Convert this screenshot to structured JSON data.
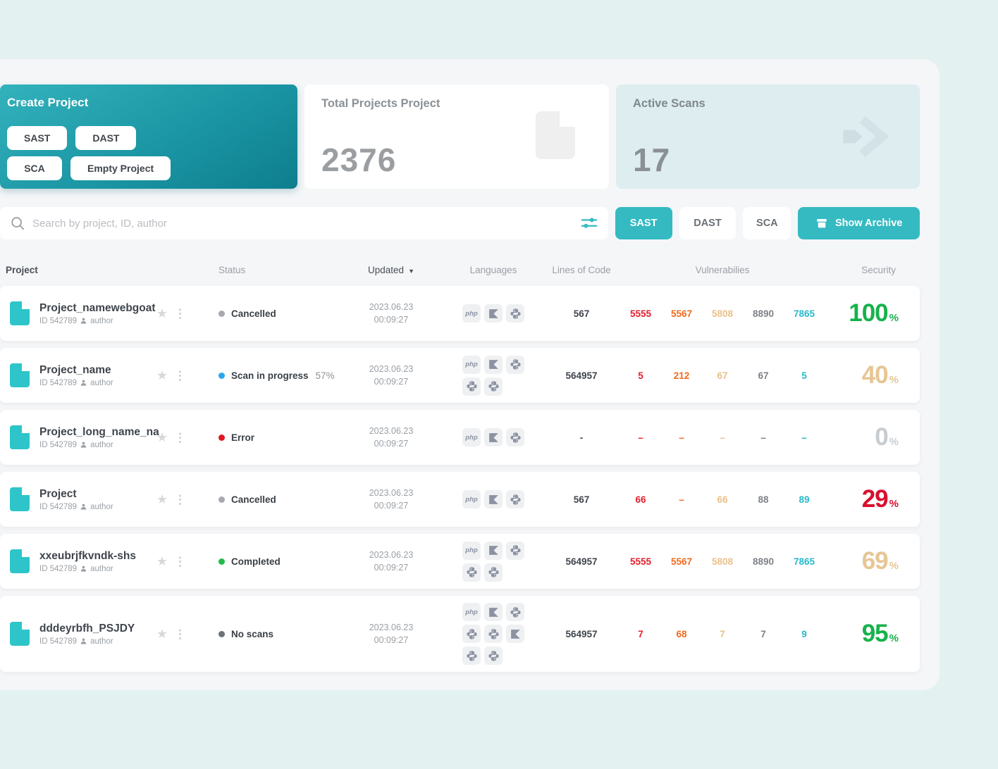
{
  "cards": {
    "create": {
      "title": "Create Project",
      "buttons": {
        "sast": "SAST",
        "dast": "DAST",
        "sca": "SCA",
        "empty": "Empty Project"
      }
    },
    "total": {
      "title": "Total Projects Project",
      "value": "2376"
    },
    "active": {
      "title": "Active Scans",
      "value": "17"
    }
  },
  "search": {
    "placeholder": "Search by project, ID, author"
  },
  "filters": {
    "sast": "SAST",
    "dast": "DAST",
    "sca": "SCA",
    "archive": "Show Archive"
  },
  "colors": {
    "accent_teal": "#35bac2",
    "mint_background": "#e3f2f0",
    "active_card": "#ddedf0",
    "vuln_critical": "#e41e2d",
    "vuln_high": "#f2691c",
    "vuln_medium": "#eac089",
    "vuln_low": "#7d8187",
    "vuln_info": "#27b9c9",
    "security_green": "#17b24c",
    "security_tan": "#e7c695",
    "security_gray": "#c7ccd1",
    "security_red": "#d8102d"
  },
  "table": {
    "percent": "%",
    "headers": {
      "project": "Project",
      "status": "Status",
      "updated": "Updated",
      "languages": "Languages",
      "loc": "Lines of Code",
      "vulns": "Vulnerabilies",
      "security": "Security"
    },
    "rows": [
      {
        "name": "Project_namewebgoat",
        "id": "ID 542789",
        "author": "author",
        "status": {
          "label": "Cancelled",
          "color": "gray"
        },
        "updated_date": "2023.06.23",
        "updated_time": "00:09:27",
        "langs": [
          "php",
          "kotlin",
          "python"
        ],
        "loc": "567",
        "vulns": [
          "5555",
          "5567",
          "5808",
          "8890",
          "7865"
        ],
        "security": {
          "value": "100",
          "color": "green"
        }
      },
      {
        "name": "Project_name",
        "id": "ID 542789",
        "author": "author",
        "status": {
          "label": "Scan in progress",
          "color": "blue"
        },
        "progress": "57%",
        "updated_date": "2023.06.23",
        "updated_time": "00:09:27",
        "langs": [
          "php",
          "kotlin",
          "python",
          "python",
          "python"
        ],
        "loc": "564957",
        "vulns": [
          "5",
          "212",
          "67",
          "67",
          "5"
        ],
        "security": {
          "value": "40",
          "color": "tan"
        }
      },
      {
        "name": "Project_long_name_na",
        "id": "ID 542789",
        "author": "author",
        "status": {
          "label": "Error",
          "color": "red"
        },
        "updated_date": "2023.06.23",
        "updated_time": "00:09:27",
        "langs": [
          "php",
          "kotlin",
          "python"
        ],
        "loc": "-",
        "vulns": [
          "–",
          "–",
          "–",
          "–",
          "–"
        ],
        "security": {
          "value": "0",
          "color": "gray"
        }
      },
      {
        "name": "Project",
        "id": "ID 542789",
        "author": "author",
        "status": {
          "label": "Cancelled",
          "color": "gray"
        },
        "updated_date": "2023.06.23",
        "updated_time": "00:09:27",
        "langs": [
          "php",
          "kotlin",
          "python"
        ],
        "loc": "567",
        "vulns": [
          "66",
          "–",
          "66",
          "88",
          "89"
        ],
        "security": {
          "value": "29",
          "color": "red"
        }
      },
      {
        "name": "xxeubrjfkvndk-shs",
        "id": "ID 542789",
        "author": "author",
        "status": {
          "label": "Completed",
          "color": "green"
        },
        "updated_date": "2023.06.23",
        "updated_time": "00:09:27",
        "langs": [
          "php",
          "kotlin",
          "python",
          "python",
          "python"
        ],
        "loc": "564957",
        "vulns": [
          "5555",
          "5567",
          "5808",
          "8890",
          "7865"
        ],
        "security": {
          "value": "69",
          "color": "tan"
        }
      },
      {
        "name": "dddeyrbfh_PSJDY",
        "id": "ID 542789",
        "author": "author",
        "status": {
          "label": "No scans",
          "color": "dark"
        },
        "updated_date": "2023.06.23",
        "updated_time": "00:09:27",
        "langs": [
          "php",
          "kotlin",
          "python",
          "python",
          "python",
          "kotlin",
          "python",
          "python"
        ],
        "loc": "564957",
        "vulns": [
          "7",
          "68",
          "7",
          "7",
          "9"
        ],
        "security": {
          "value": "95",
          "color": "green"
        }
      }
    ]
  }
}
